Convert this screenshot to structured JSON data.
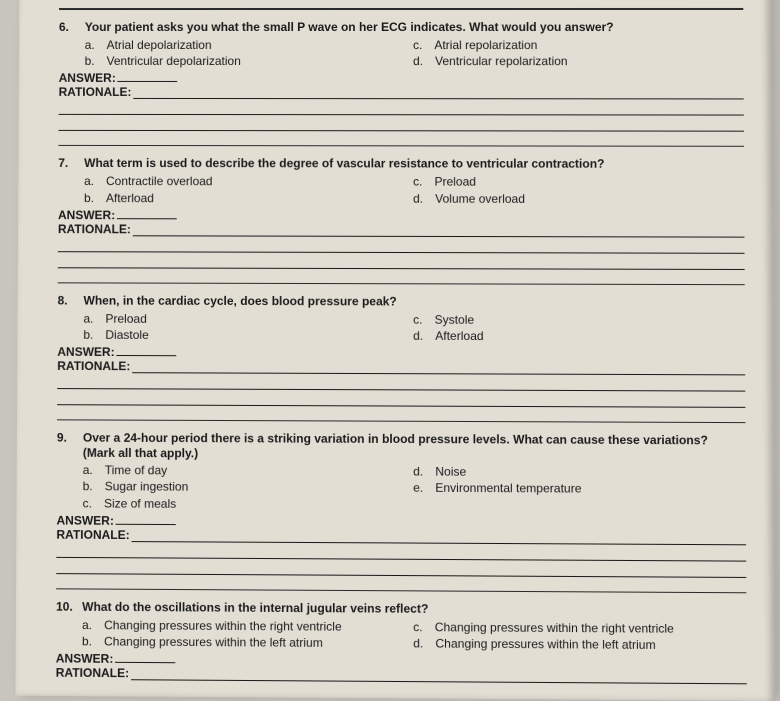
{
  "labels": {
    "answer": "ANSWER:",
    "rationale": "RATIONALE:"
  },
  "questions": [
    {
      "num": "6.",
      "text": "Your patient asks you what the small P wave on her ECG indicates. What would you answer?",
      "left": [
        {
          "l": "a.",
          "t": "Atrial depolarization"
        },
        {
          "l": "b.",
          "t": "Ventricular depolarization"
        }
      ],
      "right": [
        {
          "l": "c.",
          "t": "Atrial repolarization"
        },
        {
          "l": "d.",
          "t": "Ventricular repolarization"
        }
      ],
      "subnote": ""
    },
    {
      "num": "7.",
      "text": "What term is used to describe the degree of vascular resistance to ventricular contraction?",
      "left": [
        {
          "l": "a.",
          "t": "Contractile overload"
        },
        {
          "l": "b.",
          "t": "Afterload"
        }
      ],
      "right": [
        {
          "l": "c.",
          "t": "Preload"
        },
        {
          "l": "d.",
          "t": "Volume overload"
        }
      ],
      "subnote": ""
    },
    {
      "num": "8.",
      "text": "When, in the cardiac cycle, does blood pressure peak?",
      "left": [
        {
          "l": "a.",
          "t": "Preload"
        },
        {
          "l": "b.",
          "t": "Diastole"
        }
      ],
      "right": [
        {
          "l": "c.",
          "t": "Systole"
        },
        {
          "l": "d.",
          "t": "Afterload"
        }
      ],
      "subnote": ""
    },
    {
      "num": "9.",
      "text": "Over a 24-hour period there is a striking variation in blood pressure levels.  What can cause these variations?",
      "left": [
        {
          "l": "a.",
          "t": "Time of day"
        },
        {
          "l": "b.",
          "t": "Sugar ingestion"
        },
        {
          "l": "c.",
          "t": "Size of meals"
        }
      ],
      "right": [
        {
          "l": "d.",
          "t": "Noise"
        },
        {
          "l": "e.",
          "t": "Environmental temperature"
        }
      ],
      "subnote": "(Mark all that apply.)"
    },
    {
      "num": "10.",
      "text": "What do the oscillations in the internal jugular veins reflect?",
      "left": [
        {
          "l": "a.",
          "t": "Changing pressures within the right ventricle"
        },
        {
          "l": "b.",
          "t": "Changing pressures within the left atrium"
        }
      ],
      "right": [
        {
          "l": "c.",
          "t": "Changing pressures within the right ventricle"
        },
        {
          "l": "d.",
          "t": "Changing pressures within the left atrium"
        }
      ],
      "subnote": ""
    }
  ]
}
